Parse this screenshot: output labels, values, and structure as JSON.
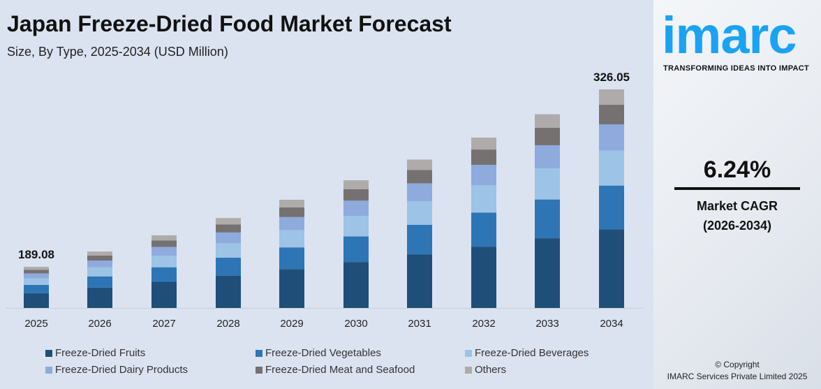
{
  "chart_data": {
    "type": "bar",
    "stacked": true,
    "title": "Japan Freeze-Dried Food Market Forecast",
    "subtitle": "Size, By Type, 2025-2034 (USD Million)",
    "categories": [
      "2025",
      "2026",
      "2027",
      "2028",
      "2029",
      "2030",
      "2031",
      "2032",
      "2033",
      "2034"
    ],
    "totals": [
      189.08,
      200.88,
      213.41,
      226.73,
      240.88,
      255.91,
      271.88,
      288.84,
      306.86,
      326.05
    ],
    "total_labels": {
      "0": "189.08",
      "9": "326.05"
    },
    "series": [
      {
        "name": "Freeze-Dried Fruits",
        "color": "#1f4e79",
        "values": [
          68.1,
          72.3,
          76.8,
          81.6,
          86.7,
          92.1,
          97.9,
          104.0,
          110.5,
          117.4
        ]
      },
      {
        "name": "Freeze-Dried Vegetables",
        "color": "#2e75b6",
        "values": [
          37.8,
          40.2,
          42.7,
          45.3,
          48.2,
          51.2,
          54.4,
          57.8,
          61.4,
          65.2
        ]
      },
      {
        "name": "Freeze-Dried Beverages",
        "color": "#9dc3e6",
        "values": [
          30.3,
          32.1,
          34.1,
          36.3,
          38.5,
          40.9,
          43.5,
          46.2,
          49.1,
          52.2
        ]
      },
      {
        "name": "Freeze-Dried Dairy Products",
        "color": "#8faadc",
        "values": [
          22.7,
          24.1,
          25.6,
          27.2,
          28.9,
          30.7,
          32.6,
          34.7,
          36.8,
          39.1
        ]
      },
      {
        "name": "Freeze-Dried Meat and Seafood",
        "color": "#767171",
        "values": [
          17.0,
          18.1,
          19.2,
          20.4,
          21.7,
          23.0,
          24.5,
          26.0,
          27.6,
          29.3
        ]
      },
      {
        "name": "Others",
        "color": "#afabab",
        "values": [
          13.2,
          14.1,
          14.9,
          15.9,
          16.9,
          17.9,
          19.0,
          20.2,
          21.5,
          22.8
        ]
      }
    ],
    "legend": "bottom",
    "grid": false
  },
  "brand": {
    "logo": "imarc",
    "tagline": "TRANSFORMING IDEAS INTO IMPACT",
    "color": "#1aa3f2"
  },
  "cagr": {
    "value": "6.24%",
    "label": "Market CAGR",
    "period": "(2026-2034)"
  },
  "copyright": {
    "line1": "© Copyright",
    "line2": "IMARC Services Private Limited 2025"
  }
}
